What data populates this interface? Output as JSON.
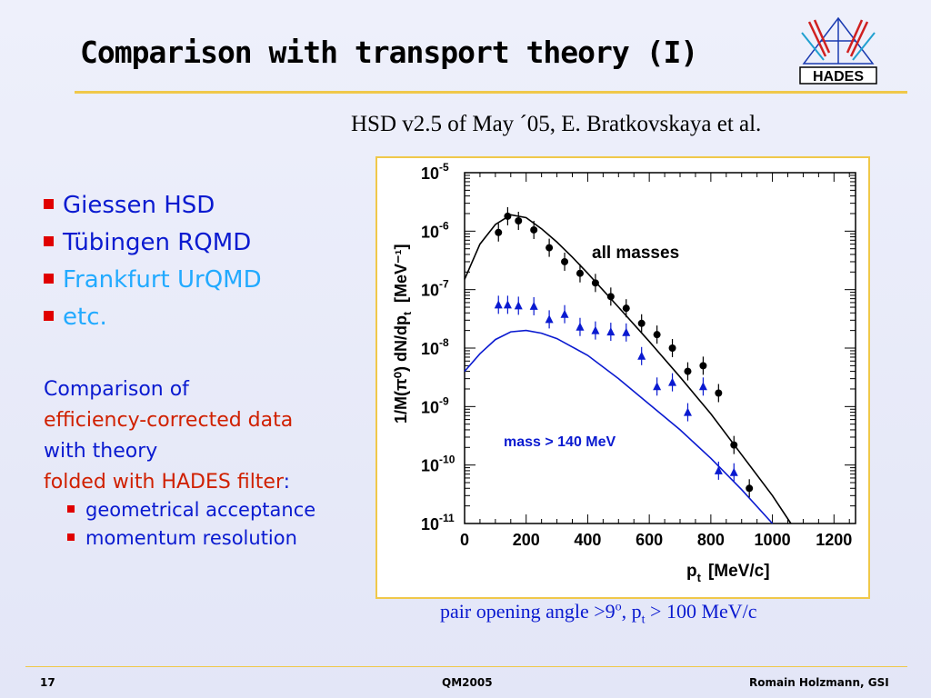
{
  "slide": {
    "title": "Comparison with transport theory (I)",
    "citation": "HSD v2.5 of  May ´05,  E. Bratkovskaya et al.",
    "logo_text": "HADES",
    "bullets": [
      {
        "label": "Giessen HSD",
        "color": "#0a1ad0"
      },
      {
        "label": "Tübingen RQMD",
        "color": "#0a1ad0"
      },
      {
        "label": "Frankfurt UrQMD",
        "color": "#22aaff"
      },
      {
        "label": "etc.",
        "color": "#22aaff"
      }
    ],
    "description": {
      "line1": "Comparison of",
      "line2": "efficiency-corrected data",
      "line3": "with theory",
      "line4_a": "folded with HADES filter",
      "line4_b": ":"
    },
    "sub_bullets": [
      "geometrical acceptance",
      "momentum resolution"
    ],
    "caption": {
      "prefix": "pair opening angle >9",
      "degree": "o",
      "mid": ",  p",
      "sub": "t",
      "suffix": " > 100 MeV/c"
    },
    "footer": {
      "page": "17",
      "conference": "QM2005",
      "author": "Romain Holzmann, GSI"
    }
  },
  "chart_data": {
    "type": "scatter",
    "title": "",
    "xlabel_main": "p",
    "xlabel_sub": "t",
    "xlabel_unit": "[MeV/c]",
    "ylabel_main": "1/M(π⁰)  dN/dp",
    "ylabel_sub": "t",
    "ylabel_unit": "[MeV⁻¹]",
    "xlim": [
      0,
      1270
    ],
    "ylim_log10": [
      -11,
      -5
    ],
    "log_y": true,
    "x_ticks": [
      0,
      200,
      400,
      600,
      800,
      1000,
      1200
    ],
    "y_ticks": [
      "-5",
      "-6",
      "-7",
      "-8",
      "-9",
      "-10",
      "-11"
    ],
    "annotations": [
      "all masses",
      "mass > 140 MeV"
    ],
    "colors": {
      "all": "#000000",
      "mass140": "#0a1ad0"
    },
    "series": [
      {
        "name": "all masses",
        "kind": "data",
        "marker": "circle",
        "color": "#000000",
        "points": [
          {
            "x": 110,
            "y": 9.5e-07
          },
          {
            "x": 140,
            "y": 1.8e-06
          },
          {
            "x": 175,
            "y": 1.5e-06
          },
          {
            "x": 225,
            "y": 1.05e-06
          },
          {
            "x": 275,
            "y": 5.2e-07
          },
          {
            "x": 325,
            "y": 3e-07
          },
          {
            "x": 375,
            "y": 1.9e-07
          },
          {
            "x": 425,
            "y": 1.3e-07
          },
          {
            "x": 475,
            "y": 7.6e-08
          },
          {
            "x": 525,
            "y": 4.8e-08
          },
          {
            "x": 575,
            "y": 2.65e-08
          },
          {
            "x": 625,
            "y": 1.7e-08
          },
          {
            "x": 675,
            "y": 1e-08
          },
          {
            "x": 725,
            "y": 4e-09
          },
          {
            "x": 775,
            "y": 5e-09
          },
          {
            "x": 825,
            "y": 1.7e-09
          },
          {
            "x": 875,
            "y": 2.2e-10
          },
          {
            "x": 925,
            "y": 4e-11
          }
        ]
      },
      {
        "name": "mass > 140 MeV",
        "kind": "data",
        "marker": "triangle",
        "color": "#0a1ad0",
        "points": [
          {
            "x": 110,
            "y": 5.5e-08
          },
          {
            "x": 140,
            "y": 5.5e-08
          },
          {
            "x": 175,
            "y": 5.3e-08
          },
          {
            "x": 225,
            "y": 5.2e-08
          },
          {
            "x": 275,
            "y": 3.1e-08
          },
          {
            "x": 325,
            "y": 3.8e-08
          },
          {
            "x": 375,
            "y": 2.3e-08
          },
          {
            "x": 425,
            "y": 2e-08
          },
          {
            "x": 475,
            "y": 1.9e-08
          },
          {
            "x": 525,
            "y": 1.85e-08
          },
          {
            "x": 575,
            "y": 7.3e-09
          },
          {
            "x": 625,
            "y": 2.2e-09
          },
          {
            "x": 675,
            "y": 2.6e-09
          },
          {
            "x": 725,
            "y": 8e-10
          },
          {
            "x": 775,
            "y": 2.2e-09
          },
          {
            "x": 825,
            "y": 8e-11
          },
          {
            "x": 875,
            "y": 7.5e-11
          }
        ]
      },
      {
        "name": "HSD all masses",
        "kind": "theory",
        "color": "#000000",
        "points": [
          {
            "x": 0,
            "y": 1.5e-07
          },
          {
            "x": 50,
            "y": 6e-07
          },
          {
            "x": 100,
            "y": 1.3e-06
          },
          {
            "x": 150,
            "y": 1.9e-06
          },
          {
            "x": 200,
            "y": 1.7e-06
          },
          {
            "x": 250,
            "y": 1.1e-06
          },
          {
            "x": 300,
            "y": 6.5e-07
          },
          {
            "x": 350,
            "y": 3.6e-07
          },
          {
            "x": 400,
            "y": 1.9e-07
          },
          {
            "x": 500,
            "y": 5e-08
          },
          {
            "x": 600,
            "y": 1.3e-08
          },
          {
            "x": 700,
            "y": 3.2e-09
          },
          {
            "x": 800,
            "y": 7.5e-10
          },
          {
            "x": 900,
            "y": 1.5e-10
          },
          {
            "x": 1000,
            "y": 3e-11
          },
          {
            "x": 1060,
            "y": 1e-11
          }
        ]
      },
      {
        "name": "HSD mass > 140 MeV",
        "kind": "theory",
        "color": "#0a1ad0",
        "points": [
          {
            "x": 0,
            "y": 4e-09
          },
          {
            "x": 50,
            "y": 8e-09
          },
          {
            "x": 100,
            "y": 1.4e-08
          },
          {
            "x": 150,
            "y": 1.9e-08
          },
          {
            "x": 200,
            "y": 2e-08
          },
          {
            "x": 250,
            "y": 1.8e-08
          },
          {
            "x": 300,
            "y": 1.45e-08
          },
          {
            "x": 400,
            "y": 7.5e-09
          },
          {
            "x": 500,
            "y": 3e-09
          },
          {
            "x": 600,
            "y": 1.1e-09
          },
          {
            "x": 700,
            "y": 4e-10
          },
          {
            "x": 800,
            "y": 1.3e-10
          },
          {
            "x": 900,
            "y": 3.8e-11
          },
          {
            "x": 1000,
            "y": 1e-11
          }
        ]
      }
    ]
  }
}
